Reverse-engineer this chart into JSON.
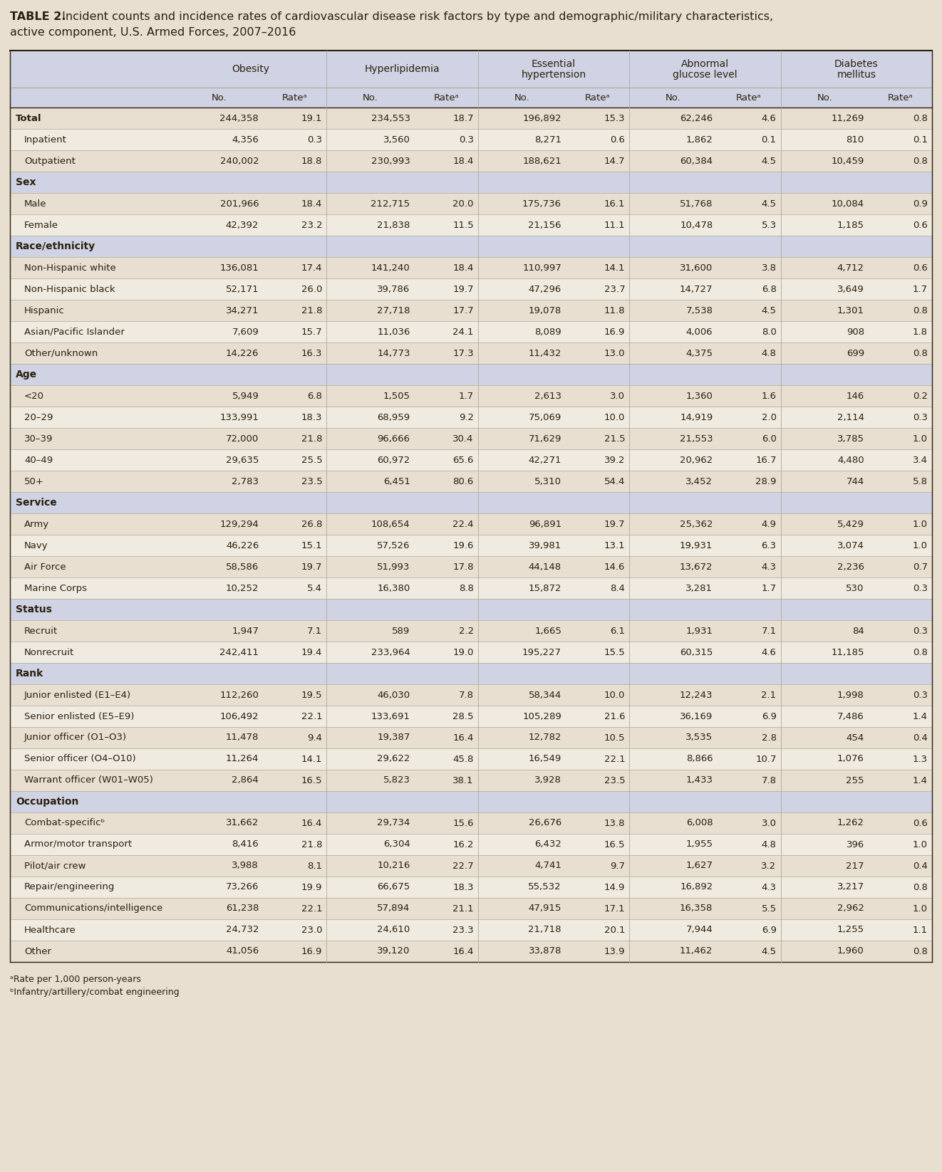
{
  "title_bold": "TABLE 2.",
  "title_rest": " Incident counts and incidence rates of cardiovascular disease risk factors by type and demographic/military characteristics,",
  "title_line2": "active component, U.S. Armed Forces, 2007–2016",
  "bg_color": "#e8dfd0",
  "header_bg": "#d0d3e3",
  "total_row_bg": "#c8ccd8",
  "data_row_bg1": "#e8dfd0",
  "data_row_bg2": "#f0ebe0",
  "section_bg": "#d8d8d8",
  "col_groups": [
    "Obesity",
    "Hyperlipidemia",
    "Essential\nhypertension",
    "Abnormal\nglucose level",
    "Diabetes\nmellitus"
  ],
  "sub_cols": [
    "No.",
    "Rateᵃ",
    "No.",
    "Rateᵃ",
    "No.",
    "Rateᵃ",
    "No.",
    "Rateᵃ",
    "No.",
    "Rateᵃ"
  ],
  "rows": [
    {
      "label": "Total",
      "indent": 0,
      "section": false,
      "bold": true,
      "data": [
        "244,358",
        "19.1",
        "234,553",
        "18.7",
        "196,892",
        "15.3",
        "62,246",
        "4.6",
        "11,269",
        "0.8"
      ]
    },
    {
      "label": "Inpatient",
      "indent": 1,
      "section": false,
      "bold": false,
      "data": [
        "4,356",
        "0.3",
        "3,560",
        "0.3",
        "8,271",
        "0.6",
        "1,862",
        "0.1",
        "810",
        "0.1"
      ]
    },
    {
      "label": "Outpatient",
      "indent": 1,
      "section": false,
      "bold": false,
      "data": [
        "240,002",
        "18.8",
        "230,993",
        "18.4",
        "188,621",
        "14.7",
        "60,384",
        "4.5",
        "10,459",
        "0.8"
      ]
    },
    {
      "label": "Sex",
      "indent": 0,
      "section": true,
      "bold": false,
      "data": [
        "",
        "",
        "",
        "",
        "",
        "",
        "",
        "",
        "",
        ""
      ]
    },
    {
      "label": "Male",
      "indent": 1,
      "section": false,
      "bold": false,
      "data": [
        "201,966",
        "18.4",
        "212,715",
        "20.0",
        "175,736",
        "16.1",
        "51,768",
        "4.5",
        "10,084",
        "0.9"
      ]
    },
    {
      "label": "Female",
      "indent": 1,
      "section": false,
      "bold": false,
      "data": [
        "42,392",
        "23.2",
        "21,838",
        "11.5",
        "21,156",
        "11.1",
        "10,478",
        "5.3",
        "1,185",
        "0.6"
      ]
    },
    {
      "label": "Race/ethnicity",
      "indent": 0,
      "section": true,
      "bold": false,
      "data": [
        "",
        "",
        "",
        "",
        "",
        "",
        "",
        "",
        "",
        ""
      ]
    },
    {
      "label": "Non-Hispanic white",
      "indent": 1,
      "section": false,
      "bold": false,
      "data": [
        "136,081",
        "17.4",
        "141,240",
        "18.4",
        "110,997",
        "14.1",
        "31,600",
        "3.8",
        "4,712",
        "0.6"
      ]
    },
    {
      "label": "Non-Hispanic black",
      "indent": 1,
      "section": false,
      "bold": false,
      "data": [
        "52,171",
        "26.0",
        "39,786",
        "19.7",
        "47,296",
        "23.7",
        "14,727",
        "6.8",
        "3,649",
        "1.7"
      ]
    },
    {
      "label": "Hispanic",
      "indent": 1,
      "section": false,
      "bold": false,
      "data": [
        "34,271",
        "21.8",
        "27,718",
        "17.7",
        "19,078",
        "11.8",
        "7,538",
        "4.5",
        "1,301",
        "0.8"
      ]
    },
    {
      "label": "Asian/Pacific Islander",
      "indent": 1,
      "section": false,
      "bold": false,
      "data": [
        "7,609",
        "15.7",
        "11,036",
        "24.1",
        "8,089",
        "16.9",
        "4,006",
        "8.0",
        "908",
        "1.8"
      ]
    },
    {
      "label": "Other/unknown",
      "indent": 1,
      "section": false,
      "bold": false,
      "data": [
        "14,226",
        "16.3",
        "14,773",
        "17.3",
        "11,432",
        "13.0",
        "4,375",
        "4.8",
        "699",
        "0.8"
      ]
    },
    {
      "label": "Age",
      "indent": 0,
      "section": true,
      "bold": false,
      "data": [
        "",
        "",
        "",
        "",
        "",
        "",
        "",
        "",
        "",
        ""
      ]
    },
    {
      "label": "<20",
      "indent": 1,
      "section": false,
      "bold": false,
      "data": [
        "5,949",
        "6.8",
        "1,505",
        "1.7",
        "2,613",
        "3.0",
        "1,360",
        "1.6",
        "146",
        "0.2"
      ]
    },
    {
      "label": "20–29",
      "indent": 1,
      "section": false,
      "bold": false,
      "data": [
        "133,991",
        "18.3",
        "68,959",
        "9.2",
        "75,069",
        "10.0",
        "14,919",
        "2.0",
        "2,114",
        "0.3"
      ]
    },
    {
      "label": "30–39",
      "indent": 1,
      "section": false,
      "bold": false,
      "data": [
        "72,000",
        "21.8",
        "96,666",
        "30.4",
        "71,629",
        "21.5",
        "21,553",
        "6.0",
        "3,785",
        "1.0"
      ]
    },
    {
      "label": "40–49",
      "indent": 1,
      "section": false,
      "bold": false,
      "data": [
        "29,635",
        "25.5",
        "60,972",
        "65.6",
        "42,271",
        "39.2",
        "20,962",
        "16.7",
        "4,480",
        "3.4"
      ]
    },
    {
      "label": "50+",
      "indent": 1,
      "section": false,
      "bold": false,
      "data": [
        "2,783",
        "23.5",
        "6,451",
        "80.6",
        "5,310",
        "54.4",
        "3,452",
        "28.9",
        "744",
        "5.8"
      ]
    },
    {
      "label": "Service",
      "indent": 0,
      "section": true,
      "bold": false,
      "data": [
        "",
        "",
        "",
        "",
        "",
        "",
        "",
        "",
        "",
        ""
      ]
    },
    {
      "label": "Army",
      "indent": 1,
      "section": false,
      "bold": false,
      "data": [
        "129,294",
        "26.8",
        "108,654",
        "22.4",
        "96,891",
        "19.7",
        "25,362",
        "4.9",
        "5,429",
        "1.0"
      ]
    },
    {
      "label": "Navy",
      "indent": 1,
      "section": false,
      "bold": false,
      "data": [
        "46,226",
        "15.1",
        "57,526",
        "19.6",
        "39,981",
        "13.1",
        "19,931",
        "6.3",
        "3,074",
        "1.0"
      ]
    },
    {
      "label": "Air Force",
      "indent": 1,
      "section": false,
      "bold": false,
      "data": [
        "58,586",
        "19.7",
        "51,993",
        "17.8",
        "44,148",
        "14.6",
        "13,672",
        "4.3",
        "2,236",
        "0.7"
      ]
    },
    {
      "label": "Marine Corps",
      "indent": 1,
      "section": false,
      "bold": false,
      "data": [
        "10,252",
        "5.4",
        "16,380",
        "8.8",
        "15,872",
        "8.4",
        "3,281",
        "1.7",
        "530",
        "0.3"
      ]
    },
    {
      "label": "Status",
      "indent": 0,
      "section": true,
      "bold": false,
      "data": [
        "",
        "",
        "",
        "",
        "",
        "",
        "",
        "",
        "",
        ""
      ]
    },
    {
      "label": "Recruit",
      "indent": 1,
      "section": false,
      "bold": false,
      "data": [
        "1,947",
        "7.1",
        "589",
        "2.2",
        "1,665",
        "6.1",
        "1,931",
        "7.1",
        "84",
        "0.3"
      ]
    },
    {
      "label": "Nonrecruit",
      "indent": 1,
      "section": false,
      "bold": false,
      "data": [
        "242,411",
        "19.4",
        "233,964",
        "19.0",
        "195,227",
        "15.5",
        "60,315",
        "4.6",
        "11,185",
        "0.8"
      ]
    },
    {
      "label": "Rank",
      "indent": 0,
      "section": true,
      "bold": false,
      "data": [
        "",
        "",
        "",
        "",
        "",
        "",
        "",
        "",
        "",
        ""
      ]
    },
    {
      "label": "Junior enlisted (E1–E4)",
      "indent": 1,
      "section": false,
      "bold": false,
      "data": [
        "112,260",
        "19.5",
        "46,030",
        "7.8",
        "58,344",
        "10.0",
        "12,243",
        "2.1",
        "1,998",
        "0.3"
      ]
    },
    {
      "label": "Senior enlisted (E5–E9)",
      "indent": 1,
      "section": false,
      "bold": false,
      "data": [
        "106,492",
        "22.1",
        "133,691",
        "28.5",
        "105,289",
        "21.6",
        "36,169",
        "6.9",
        "7,486",
        "1.4"
      ]
    },
    {
      "label": "Junior officer (O1–O3)",
      "indent": 1,
      "section": false,
      "bold": false,
      "data": [
        "11,478",
        "9.4",
        "19,387",
        "16.4",
        "12,782",
        "10.5",
        "3,535",
        "2.8",
        "454",
        "0.4"
      ]
    },
    {
      "label": "Senior officer (O4–O10)",
      "indent": 1,
      "section": false,
      "bold": false,
      "data": [
        "11,264",
        "14.1",
        "29,622",
        "45.8",
        "16,549",
        "22.1",
        "8,866",
        "10.7",
        "1,076",
        "1.3"
      ]
    },
    {
      "label": "Warrant officer (W01–W05)",
      "indent": 1,
      "section": false,
      "bold": false,
      "data": [
        "2,864",
        "16.5",
        "5,823",
        "38.1",
        "3,928",
        "23.5",
        "1,433",
        "7.8",
        "255",
        "1.4"
      ]
    },
    {
      "label": "Occupation",
      "indent": 0,
      "section": true,
      "bold": false,
      "data": [
        "",
        "",
        "",
        "",
        "",
        "",
        "",
        "",
        "",
        ""
      ]
    },
    {
      "label": "Combat-specificᵇ",
      "indent": 1,
      "section": false,
      "bold": false,
      "data": [
        "31,662",
        "16.4",
        "29,734",
        "15.6",
        "26,676",
        "13.8",
        "6,008",
        "3.0",
        "1,262",
        "0.6"
      ]
    },
    {
      "label": "Armor/motor transport",
      "indent": 1,
      "section": false,
      "bold": false,
      "data": [
        "8,416",
        "21.8",
        "6,304",
        "16.2",
        "6,432",
        "16.5",
        "1,955",
        "4.8",
        "396",
        "1.0"
      ]
    },
    {
      "label": "Pilot/air crew",
      "indent": 1,
      "section": false,
      "bold": false,
      "data": [
        "3,988",
        "8.1",
        "10,216",
        "22.7",
        "4,741",
        "9.7",
        "1,627",
        "3.2",
        "217",
        "0.4"
      ]
    },
    {
      "label": "Repair/engineering",
      "indent": 1,
      "section": false,
      "bold": false,
      "data": [
        "73,266",
        "19.9",
        "66,675",
        "18.3",
        "55,532",
        "14.9",
        "16,892",
        "4.3",
        "3,217",
        "0.8"
      ]
    },
    {
      "label": "Communications/intelligence",
      "indent": 1,
      "section": false,
      "bold": false,
      "data": [
        "61,238",
        "22.1",
        "57,894",
        "21.1",
        "47,915",
        "17.1",
        "16,358",
        "5.5",
        "2,962",
        "1.0"
      ]
    },
    {
      "label": "Healthcare",
      "indent": 1,
      "section": false,
      "bold": false,
      "data": [
        "24,732",
        "23.0",
        "24,610",
        "23.3",
        "21,718",
        "20.1",
        "7,944",
        "6.9",
        "1,255",
        "1.1"
      ]
    },
    {
      "label": "Other",
      "indent": 1,
      "section": false,
      "bold": false,
      "data": [
        "41,056",
        "16.9",
        "39,120",
        "16.4",
        "33,878",
        "13.9",
        "11,462",
        "4.5",
        "1,960",
        "0.8"
      ]
    }
  ],
  "footnote_a": "ᵃRate per 1,000 person-years",
  "footnote_b": "ᵇInfantry/artillery/combat engineering",
  "text_color": "#2a2010",
  "border_color": "#888888",
  "light_line_color": "#b0a898"
}
